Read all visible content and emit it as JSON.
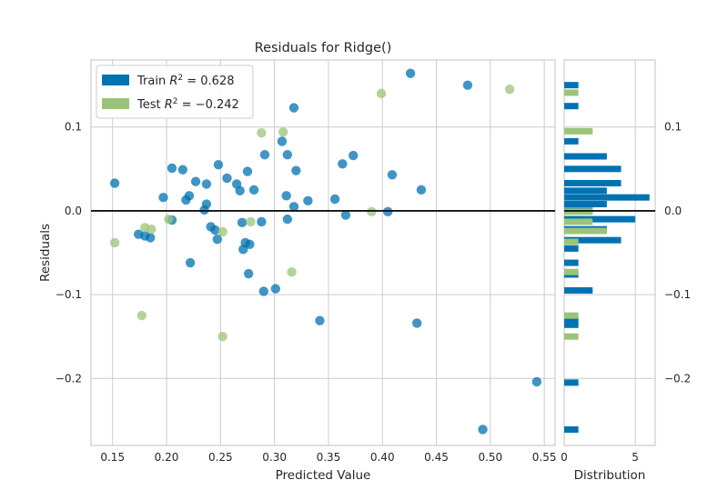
{
  "chart_data": [
    {
      "type": "scatter",
      "title": "Residuals for Ridge()",
      "xlabel": "Predicted Value",
      "ylabel": "Residuals",
      "xlim": [
        0.13,
        0.56
      ],
      "ylim": [
        -0.28,
        0.18
      ],
      "x_ticks": [
        0.15,
        0.2,
        0.25,
        0.3,
        0.35,
        0.4,
        0.45,
        0.5,
        0.55
      ],
      "x_tick_labels": [
        "0.15",
        "0.20",
        "0.25",
        "0.30",
        "0.35",
        "0.40",
        "0.45",
        "0.50",
        "0.55"
      ],
      "y_ticks": [
        -0.2,
        -0.1,
        0.0,
        0.1
      ],
      "y_tick_labels": [
        "−0.2",
        "−0.1",
        "0.0",
        "0.1"
      ],
      "reference_line_y": 0,
      "grid": true,
      "legend_placement": "top-left",
      "series": [
        {
          "name": "Train",
          "legend_label": "Train R² = 0.628",
          "legend_prefix": "Train ",
          "legend_math": "R",
          "legend_sup": "2",
          "legend_value": " = 0.628",
          "color": "#0072b2",
          "points": [
            [
              0.152,
              0.033
            ],
            [
              0.174,
              -0.028
            ],
            [
              0.18,
              -0.03
            ],
            [
              0.185,
              -0.032
            ],
            [
              0.197,
              0.016
            ],
            [
              0.205,
              0.051
            ],
            [
              0.205,
              -0.011
            ],
            [
              0.215,
              0.049
            ],
            [
              0.218,
              0.013
            ],
            [
              0.221,
              0.018
            ],
            [
              0.222,
              -0.062
            ],
            [
              0.227,
              0.035
            ],
            [
              0.235,
              0.001
            ],
            [
              0.237,
              0.032
            ],
            [
              0.237,
              0.008
            ],
            [
              0.241,
              -0.019
            ],
            [
              0.245,
              -0.023
            ],
            [
              0.247,
              -0.034
            ],
            [
              0.248,
              0.055
            ],
            [
              0.256,
              0.039
            ],
            [
              0.265,
              0.032
            ],
            [
              0.268,
              0.024
            ],
            [
              0.27,
              -0.014
            ],
            [
              0.271,
              -0.046
            ],
            [
              0.273,
              -0.038
            ],
            [
              0.275,
              0.047
            ],
            [
              0.276,
              -0.075
            ],
            [
              0.277,
              -0.04
            ],
            [
              0.281,
              0.025
            ],
            [
              0.288,
              -0.013
            ],
            [
              0.29,
              -0.096
            ],
            [
              0.291,
              0.067
            ],
            [
              0.301,
              -0.093
            ],
            [
              0.307,
              0.083
            ],
            [
              0.311,
              0.018
            ],
            [
              0.312,
              0.067
            ],
            [
              0.312,
              -0.01
            ],
            [
              0.318,
              0.005
            ],
            [
              0.318,
              0.123
            ],
            [
              0.32,
              0.048
            ],
            [
              0.331,
              0.012
            ],
            [
              0.342,
              -0.131
            ],
            [
              0.356,
              0.014
            ],
            [
              0.363,
              0.056
            ],
            [
              0.366,
              -0.005
            ],
            [
              0.373,
              0.066
            ],
            [
              0.405,
              -0.001
            ],
            [
              0.409,
              0.043
            ],
            [
              0.426,
              0.164
            ],
            [
              0.432,
              -0.134
            ],
            [
              0.436,
              0.025
            ],
            [
              0.479,
              0.15
            ],
            [
              0.493,
              -0.261
            ],
            [
              0.543,
              -0.204
            ]
          ]
        },
        {
          "name": "Test",
          "legend_label": "Test R² = −0.242",
          "legend_prefix": "Test ",
          "legend_math": "R",
          "legend_sup": "2",
          "legend_value": " = −0.242",
          "color": "#9bc47a",
          "points": [
            [
              0.152,
              -0.038
            ],
            [
              0.177,
              -0.125
            ],
            [
              0.18,
              -0.02
            ],
            [
              0.186,
              -0.022
            ],
            [
              0.202,
              -0.01
            ],
            [
              0.252,
              -0.025
            ],
            [
              0.252,
              -0.15
            ],
            [
              0.278,
              -0.013
            ],
            [
              0.288,
              0.093
            ],
            [
              0.308,
              0.094
            ],
            [
              0.316,
              -0.073
            ],
            [
              0.39,
              -0.001
            ],
            [
              0.399,
              0.14
            ],
            [
              0.518,
              0.145
            ]
          ]
        }
      ]
    },
    {
      "type": "bar",
      "orientation": "horizontal",
      "title": "",
      "xlabel": "Distribution",
      "ylabel": "",
      "xlim": [
        0,
        6.4
      ],
      "ylim": [
        -0.28,
        0.18
      ],
      "x_ticks": [
        0,
        5
      ],
      "x_tick_labels": [
        "0",
        "5"
      ],
      "y_ticks": [
        -0.2,
        -0.1,
        0.0,
        0.1
      ],
      "y_tick_labels": [
        "−0.2",
        "−0.1",
        "0.0",
        "0.1"
      ],
      "reference_line_y": 0,
      "series": [
        {
          "name": "Train",
          "color": "#0072b2",
          "bars": [
            {
              "y": 0.15,
              "value": 1
            },
            {
              "y": 0.125,
              "value": 1
            },
            {
              "y": 0.083,
              "value": 1
            },
            {
              "y": 0.065,
              "value": 3
            },
            {
              "y": 0.05,
              "value": 4
            },
            {
              "y": 0.033,
              "value": 4
            },
            {
              "y": 0.024,
              "value": 3
            },
            {
              "y": 0.016,
              "value": 6
            },
            {
              "y": 0.008,
              "value": 3
            },
            {
              "y": 0.0,
              "value": 2
            },
            {
              "y": -0.01,
              "value": 5
            },
            {
              "y": -0.022,
              "value": 3
            },
            {
              "y": -0.035,
              "value": 4
            },
            {
              "y": -0.045,
              "value": 1
            },
            {
              "y": -0.062,
              "value": 1
            },
            {
              "y": -0.076,
              "value": 1
            },
            {
              "y": -0.095,
              "value": 2
            },
            {
              "y": -0.13,
              "value": 1
            },
            {
              "y": -0.136,
              "value": 1
            },
            {
              "y": -0.205,
              "value": 1
            },
            {
              "y": -0.261,
              "value": 1
            }
          ]
        },
        {
          "name": "Test",
          "color": "#9bc47a",
          "bars": [
            {
              "y": 0.141,
              "value": 1
            },
            {
              "y": 0.095,
              "value": 2
            },
            {
              "y": -0.001,
              "value": 2
            },
            {
              "y": -0.013,
              "value": 2
            },
            {
              "y": -0.024,
              "value": 3
            },
            {
              "y": -0.037,
              "value": 1
            },
            {
              "y": -0.073,
              "value": 1
            },
            {
              "y": -0.125,
              "value": 1
            },
            {
              "y": -0.15,
              "value": 1
            }
          ]
        }
      ]
    }
  ]
}
